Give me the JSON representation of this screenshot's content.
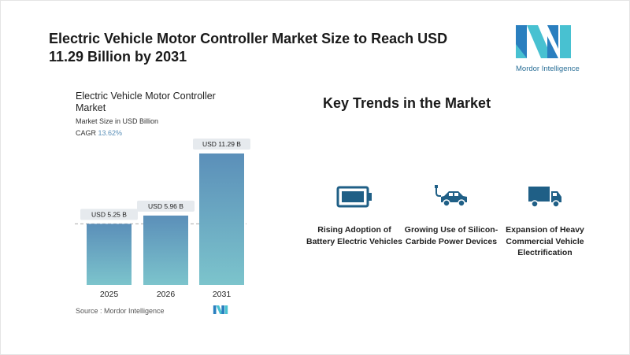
{
  "header": {
    "title": "Electric Vehicle Motor Controller Market Size to Reach USD 11.29 Billion by 2031",
    "logo_text": "Mordor Intelligence"
  },
  "chart_data": {
    "type": "bar",
    "title": "Electric Vehicle Motor Controller Market",
    "subtitle": "Market Size in USD Billion",
    "cagr_label": "CAGR",
    "cagr_value": "13.62%",
    "categories": [
      "2025",
      "2026",
      "2031"
    ],
    "values": [
      5.25,
      5.96,
      11.29
    ],
    "data_labels": [
      "USD 5.25 B",
      "USD 5.96 B",
      "USD 11.29 B"
    ],
    "xlabel": "",
    "ylabel": "",
    "ylim": [
      0,
      11.29
    ],
    "source": "Source :  Mordor Intelligence",
    "colors": {
      "top": "#5b8fb9",
      "bottom": "#7cc4cc"
    }
  },
  "trends": {
    "heading": "Key Trends in the Market",
    "items": [
      {
        "icon": "battery-icon",
        "label": "Rising Adoption of Battery Electric Vehicles"
      },
      {
        "icon": "electric-car-icon",
        "label": "Growing Use of Silicon-Carbide Power Devices"
      },
      {
        "icon": "truck-icon",
        "label": "Expansion of Heavy Commercial Vehicle Electrification"
      }
    ],
    "icon_color": "#1f5f86"
  }
}
